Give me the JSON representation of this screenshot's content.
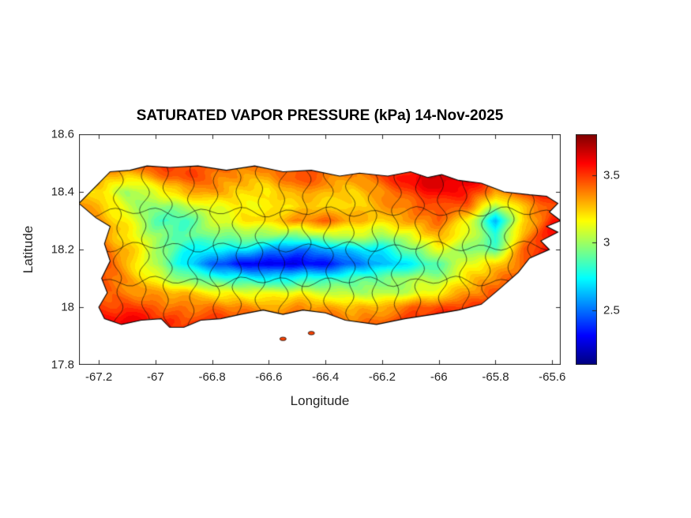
{
  "figure": {
    "title": "SATURATED VAPOR PRESSURE (kPa) 14-Nov-2025",
    "xlabel": "Longitude",
    "ylabel": "Latitude"
  },
  "axes": {
    "xlim": [
      -67.27,
      -65.57
    ],
    "ylim": [
      17.8,
      18.6
    ],
    "xticks": [
      -67.2,
      -67,
      -66.8,
      -66.6,
      -66.4,
      -66.2,
      -66,
      -65.8,
      -65.6
    ],
    "xtick_labels": [
      "-67.2",
      "-67",
      "-66.8",
      "-66.6",
      "-66.4",
      "-66.2",
      "-66",
      "-65.8",
      "-65.6"
    ],
    "yticks": [
      17.8,
      18,
      18.2,
      18.4,
      18.6
    ],
    "ytick_labels": [
      "17.8",
      "18",
      "18.2",
      "18.4",
      "18.6"
    ]
  },
  "colorbar": {
    "clim": [
      2.1,
      3.8
    ],
    "ticks": [
      2.5,
      3,
      3.5
    ],
    "tick_labels": [
      "2.5",
      "3",
      "3.5"
    ],
    "colormap": "jet"
  },
  "chart_data": {
    "type": "heatmap",
    "title": "SATURATED VAPOR PRESSURE (kPa) 14-Nov-2025",
    "variable": "SATURATED VAPOR PRESSURE",
    "units": "kPa",
    "date": "14-Nov-2025",
    "xlabel": "Longitude",
    "ylabel": "Latitude",
    "grid_note": "values_kpa rows ordered north to south matching lat array; columns west to east matching lon array",
    "lon": [
      -67.2,
      -67.1,
      -67.0,
      -66.9,
      -66.8,
      -66.7,
      -66.6,
      -66.5,
      -66.4,
      -66.3,
      -66.2,
      -66.1,
      -66.0,
      -65.9,
      -65.8,
      -65.7,
      -65.6
    ],
    "lat": [
      18.5,
      18.45,
      18.4,
      18.35,
      18.3,
      18.25,
      18.2,
      18.15,
      18.1,
      18.05,
      18.0,
      17.95
    ],
    "values_kpa": [
      [
        3.4,
        3.45,
        3.5,
        3.5,
        3.45,
        3.4,
        3.45,
        3.5,
        3.5,
        3.45,
        3.5,
        3.55,
        3.65,
        3.6,
        3.55,
        3.5,
        3.45
      ],
      [
        3.3,
        3.2,
        3.35,
        3.45,
        3.4,
        3.35,
        3.3,
        3.45,
        3.4,
        3.35,
        3.45,
        3.6,
        3.7,
        3.65,
        3.5,
        3.55,
        3.5
      ],
      [
        3.2,
        3.0,
        3.1,
        3.3,
        3.35,
        3.25,
        3.2,
        3.35,
        3.3,
        3.25,
        3.35,
        3.5,
        3.6,
        3.55,
        3.3,
        3.5,
        3.55
      ],
      [
        3.3,
        3.1,
        2.95,
        3.0,
        3.15,
        3.2,
        3.15,
        3.2,
        3.25,
        3.2,
        3.3,
        3.4,
        3.5,
        3.4,
        3.0,
        3.3,
        3.5
      ],
      [
        3.35,
        3.15,
        2.9,
        2.85,
        3.05,
        3.15,
        3.25,
        3.35,
        3.4,
        3.3,
        3.25,
        3.3,
        3.4,
        3.2,
        2.65,
        3.2,
        3.55
      ],
      [
        3.4,
        3.2,
        3.0,
        2.9,
        2.95,
        3.0,
        3.0,
        2.95,
        3.05,
        3.1,
        3.0,
        3.1,
        3.3,
        3.1,
        2.8,
        3.3,
        3.6
      ],
      [
        3.45,
        3.25,
        3.05,
        2.8,
        2.7,
        2.7,
        2.6,
        2.5,
        2.55,
        2.7,
        2.75,
        2.9,
        3.1,
        3.0,
        2.9,
        3.4,
        3.6
      ],
      [
        3.5,
        3.3,
        3.0,
        2.7,
        2.5,
        2.35,
        2.25,
        2.3,
        2.35,
        2.5,
        2.6,
        2.75,
        2.9,
        3.1,
        3.2,
        3.45,
        3.6
      ],
      [
        3.5,
        3.35,
        3.15,
        2.95,
        2.85,
        2.8,
        2.7,
        2.75,
        2.8,
        2.85,
        2.9,
        3.0,
        3.0,
        3.2,
        3.35,
        3.5,
        3.55
      ],
      [
        3.45,
        3.4,
        3.3,
        3.25,
        3.2,
        3.15,
        3.1,
        3.15,
        3.1,
        3.0,
        3.0,
        3.1,
        3.2,
        3.3,
        3.45,
        3.55,
        3.5
      ],
      [
        3.5,
        3.5,
        3.45,
        3.4,
        3.4,
        3.35,
        3.3,
        3.35,
        3.3,
        3.25,
        3.3,
        3.4,
        3.45,
        3.5,
        3.55,
        3.6,
        3.5
      ],
      [
        3.55,
        3.6,
        3.55,
        3.5,
        3.5,
        3.45,
        3.45,
        3.5,
        3.45,
        3.4,
        3.45,
        3.5,
        3.55,
        3.6,
        3.6,
        3.6,
        3.55
      ]
    ],
    "island_outline": [
      [
        -67.27,
        18.36
      ],
      [
        -67.2,
        18.43
      ],
      [
        -67.16,
        18.47
      ],
      [
        -67.09,
        18.475
      ],
      [
        -67.03,
        18.49
      ],
      [
        -66.95,
        18.485
      ],
      [
        -66.85,
        18.49
      ],
      [
        -66.75,
        18.475
      ],
      [
        -66.65,
        18.49
      ],
      [
        -66.55,
        18.47
      ],
      [
        -66.45,
        18.475
      ],
      [
        -66.35,
        18.455
      ],
      [
        -66.28,
        18.465
      ],
      [
        -66.18,
        18.455
      ],
      [
        -66.1,
        18.47
      ],
      [
        -66.04,
        18.45
      ],
      [
        -65.99,
        18.46
      ],
      [
        -65.93,
        18.44
      ],
      [
        -65.85,
        18.43
      ],
      [
        -65.77,
        18.4
      ],
      [
        -65.68,
        18.39
      ],
      [
        -65.62,
        18.385
      ],
      [
        -65.58,
        18.36
      ],
      [
        -65.61,
        18.33
      ],
      [
        -65.57,
        18.3
      ],
      [
        -65.62,
        18.28
      ],
      [
        -65.58,
        18.26
      ],
      [
        -65.64,
        18.23
      ],
      [
        -65.61,
        18.2
      ],
      [
        -65.68,
        18.17
      ],
      [
        -65.72,
        18.12
      ],
      [
        -65.79,
        18.06
      ],
      [
        -65.85,
        18.01
      ],
      [
        -65.93,
        17.99
      ],
      [
        -66.02,
        17.975
      ],
      [
        -66.12,
        17.96
      ],
      [
        -66.22,
        17.94
      ],
      [
        -66.33,
        17.955
      ],
      [
        -66.4,
        17.98
      ],
      [
        -66.48,
        17.99
      ],
      [
        -66.55,
        17.975
      ],
      [
        -66.62,
        17.99
      ],
      [
        -66.7,
        17.975
      ],
      [
        -66.77,
        17.96
      ],
      [
        -66.84,
        17.955
      ],
      [
        -66.9,
        17.93
      ],
      [
        -66.95,
        17.93
      ],
      [
        -66.98,
        17.96
      ],
      [
        -67.05,
        17.955
      ],
      [
        -67.12,
        17.94
      ],
      [
        -67.18,
        17.96
      ],
      [
        -67.2,
        18.0
      ],
      [
        -67.17,
        18.05
      ],
      [
        -67.19,
        18.1
      ],
      [
        -67.16,
        18.16
      ],
      [
        -67.18,
        18.22
      ],
      [
        -67.16,
        18.28
      ],
      [
        -67.21,
        18.31
      ]
    ],
    "islets": [
      [
        -66.55,
        17.89
      ],
      [
        -66.45,
        17.91
      ]
    ],
    "boundary_lons": [
      -67.13,
      -67.04,
      -66.96,
      -66.87,
      -66.79,
      -66.71,
      -66.63,
      -66.55,
      -66.47,
      -66.39,
      -66.31,
      -66.23,
      -66.15,
      -66.07,
      -65.99,
      -65.91,
      -65.83,
      -65.75,
      -65.67
    ],
    "boundary_lats": [
      18.09,
      18.21,
      18.33
    ]
  }
}
